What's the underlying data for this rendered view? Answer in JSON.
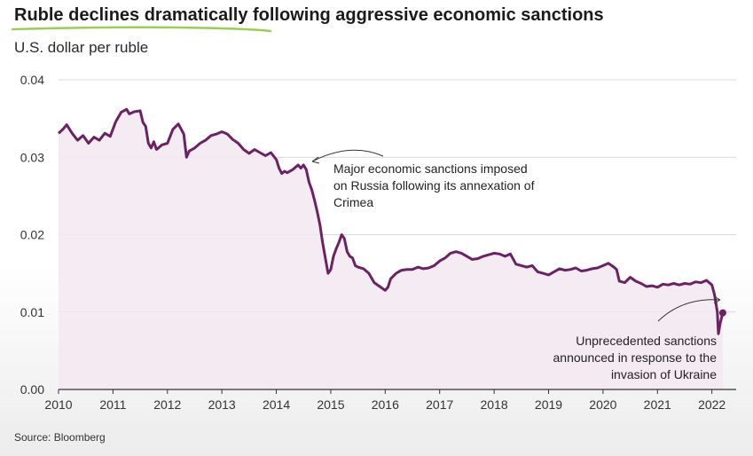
{
  "title": "Ruble declines dramatically following aggressive economic sanctions",
  "subtitle": "U.S. dollar per ruble",
  "source": "Source: Bloomberg",
  "colors": {
    "line": "#6b2262",
    "fill": "#f3e7f1",
    "highlight": "#9ccc5a",
    "grid": "#d9d9d9",
    "axis": "#333333"
  },
  "chart_data": {
    "type": "area",
    "title": "Ruble declines dramatically following aggressive economic sanctions",
    "ylabel": "U.S. dollar per ruble",
    "xlabel": "",
    "xlim": [
      2010,
      2022.25
    ],
    "ylim": [
      0,
      0.04
    ],
    "y_ticks": [
      "0.00",
      "0.01",
      "0.02",
      "0.03",
      "0.04"
    ],
    "x_ticks": [
      "2010",
      "2011",
      "2012",
      "2013",
      "2014",
      "2015",
      "2016",
      "2017",
      "2018",
      "2019",
      "2020",
      "2021",
      "2022"
    ],
    "grid": true,
    "series": [
      {
        "name": "USD per RUB",
        "x": [
          2010.0,
          2010.08,
          2010.15,
          2010.25,
          2010.35,
          2010.45,
          2010.55,
          2010.65,
          2010.75,
          2010.85,
          2010.95,
          2011.05,
          2011.15,
          2011.25,
          2011.3,
          2011.4,
          2011.5,
          2011.55,
          2011.6,
          2011.65,
          2011.7,
          2011.75,
          2011.8,
          2011.9,
          2012.0,
          2012.1,
          2012.2,
          2012.3,
          2012.35,
          2012.4,
          2012.5,
          2012.6,
          2012.7,
          2012.8,
          2012.9,
          2013.0,
          2013.1,
          2013.2,
          2013.3,
          2013.4,
          2013.5,
          2013.6,
          2013.7,
          2013.8,
          2013.9,
          2014.0,
          2014.05,
          2014.1,
          2014.15,
          2014.2,
          2014.3,
          2014.4,
          2014.45,
          2014.5,
          2014.55,
          2014.6,
          2014.65,
          2014.7,
          2014.75,
          2014.8,
          2014.85,
          2014.9,
          2014.95,
          2015.0,
          2015.05,
          2015.1,
          2015.15,
          2015.2,
          2015.25,
          2015.3,
          2015.35,
          2015.4,
          2015.45,
          2015.5,
          2015.6,
          2015.7,
          2015.8,
          2015.9,
          2016.0,
          2016.05,
          2016.1,
          2016.2,
          2016.3,
          2016.4,
          2016.5,
          2016.6,
          2016.7,
          2016.8,
          2016.9,
          2017.0,
          2017.1,
          2017.2,
          2017.3,
          2017.4,
          2017.5,
          2017.6,
          2017.7,
          2017.8,
          2017.9,
          2018.0,
          2018.1,
          2018.2,
          2018.3,
          2018.4,
          2018.5,
          2018.6,
          2018.7,
          2018.8,
          2018.9,
          2019.0,
          2019.1,
          2019.2,
          2019.3,
          2019.4,
          2019.5,
          2019.6,
          2019.7,
          2019.8,
          2019.9,
          2020.0,
          2020.1,
          2020.2,
          2020.25,
          2020.3,
          2020.4,
          2020.5,
          2020.6,
          2020.7,
          2020.8,
          2020.9,
          2021.0,
          2021.1,
          2021.2,
          2021.3,
          2021.4,
          2021.5,
          2021.6,
          2021.7,
          2021.8,
          2021.9,
          2022.0,
          2022.05,
          2022.1,
          2022.12,
          2022.15,
          2022.2
        ],
        "values": [
          0.0331,
          0.0336,
          0.0342,
          0.0331,
          0.0322,
          0.0328,
          0.0318,
          0.0326,
          0.0322,
          0.0331,
          0.0327,
          0.0346,
          0.0358,
          0.0362,
          0.0356,
          0.0359,
          0.036,
          0.0345,
          0.034,
          0.0318,
          0.0312,
          0.032,
          0.031,
          0.0316,
          0.0318,
          0.0336,
          0.0343,
          0.033,
          0.03,
          0.0308,
          0.0312,
          0.0318,
          0.0322,
          0.0328,
          0.033,
          0.0333,
          0.033,
          0.0323,
          0.0318,
          0.031,
          0.0305,
          0.031,
          0.0306,
          0.0302,
          0.0306,
          0.0297,
          0.0286,
          0.0279,
          0.0282,
          0.028,
          0.0284,
          0.029,
          0.0286,
          0.029,
          0.0284,
          0.0268,
          0.0258,
          0.0245,
          0.023,
          0.0213,
          0.019,
          0.017,
          0.015,
          0.0155,
          0.0172,
          0.0182,
          0.019,
          0.02,
          0.0195,
          0.0178,
          0.0172,
          0.017,
          0.016,
          0.0158,
          0.0156,
          0.015,
          0.0138,
          0.0133,
          0.0128,
          0.0132,
          0.0143,
          0.015,
          0.0154,
          0.0155,
          0.0155,
          0.0158,
          0.0156,
          0.0157,
          0.016,
          0.0166,
          0.017,
          0.0176,
          0.0178,
          0.0176,
          0.0172,
          0.0168,
          0.0169,
          0.0172,
          0.0174,
          0.0176,
          0.0175,
          0.0172,
          0.0175,
          0.0162,
          0.016,
          0.0158,
          0.016,
          0.0152,
          0.015,
          0.0148,
          0.0152,
          0.0156,
          0.0154,
          0.0155,
          0.0157,
          0.0153,
          0.0154,
          0.0156,
          0.0157,
          0.016,
          0.0163,
          0.0158,
          0.0155,
          0.014,
          0.0138,
          0.0145,
          0.014,
          0.0137,
          0.0133,
          0.0134,
          0.0132,
          0.0136,
          0.0135,
          0.0137,
          0.0135,
          0.0137,
          0.0136,
          0.0139,
          0.0138,
          0.0141,
          0.0135,
          0.0122,
          0.01,
          0.0072,
          0.0085,
          0.0099
        ]
      }
    ],
    "annotations": [
      {
        "lines": [
          "Major economic sanctions imposed",
          "on Russia following its annexation of",
          "Crimea"
        ],
        "x": 2014.5,
        "y": 0.029
      },
      {
        "lines": [
          "Unprecedented sanctions",
          "announced in response to the",
          "invasion of Ukraine"
        ],
        "x": 2022.1,
        "y": 0.011
      }
    ]
  }
}
